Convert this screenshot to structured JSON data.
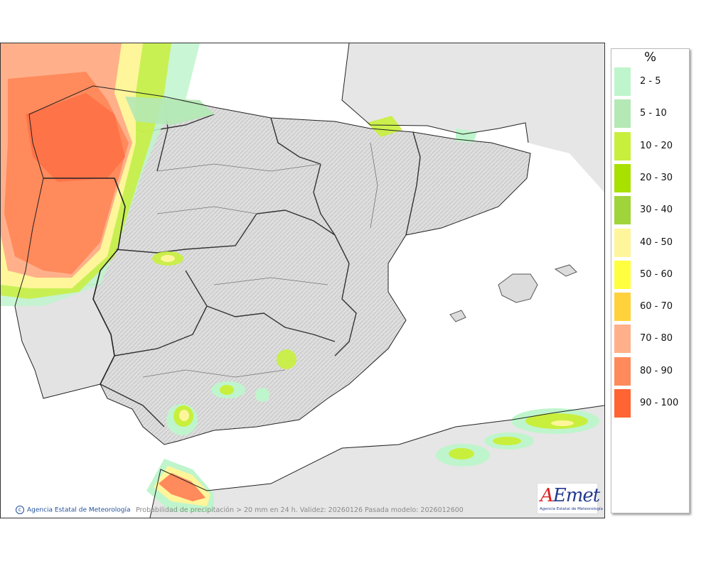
{
  "map": {
    "legend_title": "%",
    "legend": [
      {
        "label": "2 - 5",
        "color": "#bff5cc"
      },
      {
        "label": "5 - 10",
        "color": "#b4e8b4"
      },
      {
        "label": "10 - 20",
        "color": "#c8ef3c"
      },
      {
        "label": "20 - 30",
        "color": "#a8e000"
      },
      {
        "label": "30 - 40",
        "color": "#9fd43a"
      },
      {
        "label": "40 - 50",
        "color": "#fff59a"
      },
      {
        "label": "50 - 60",
        "color": "#ffff40"
      },
      {
        "label": "60 - 70",
        "color": "#ffd23c"
      },
      {
        "label": "70 - 80",
        "color": "#ffb08a"
      },
      {
        "label": "80 - 90",
        "color": "#ff8a5c"
      },
      {
        "label": "90 - 100",
        "color": "#ff6432"
      }
    ],
    "credit": "Agencia Estatal de Meteorología",
    "footer_note": "Probabilidad de precipitación > 20 mm en 24 h. Validez: 20260126 Pasada modelo: 2026012600",
    "logo_text": "AEmet",
    "logo_subtitle": "Agencia Estatal de Meteorología"
  }
}
